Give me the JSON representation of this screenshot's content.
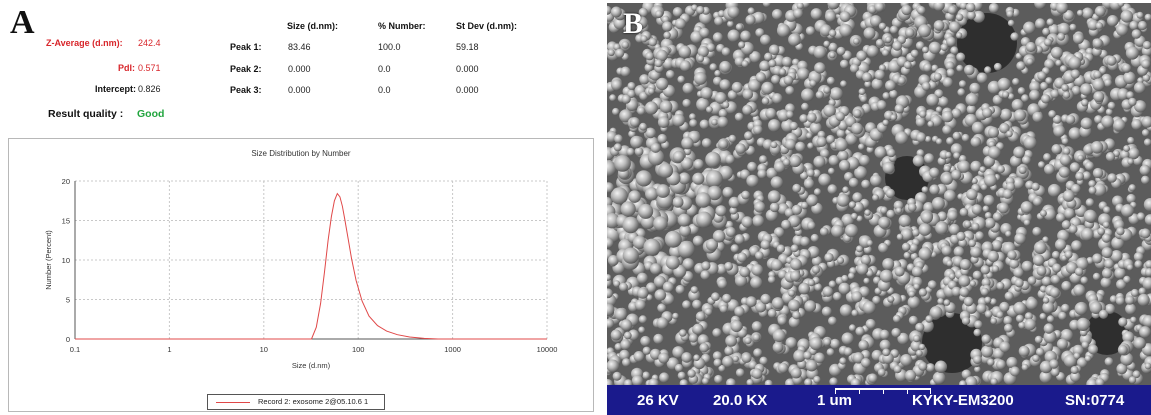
{
  "panel_a": {
    "letter": "A",
    "summary": {
      "z_average_label": "Z-Average (d.nm):",
      "z_average_value": "242.4",
      "pdi_label": "PdI:",
      "pdi_value": "0.571",
      "intercept_label": "Intercept:",
      "intercept_value": "0.826",
      "result_quality_label": "Result quality :",
      "result_quality_value": "Good",
      "column_headers": [
        "Size (d.nm):",
        "% Number:",
        "St Dev (d.nm):"
      ],
      "peaks": [
        {
          "label": "Peak 1:",
          "size": "83.46",
          "number": "100.0",
          "stdev": "59.18"
        },
        {
          "label": "Peak 2:",
          "size": "0.000",
          "number": "0.0",
          "stdev": "0.000"
        },
        {
          "label": "Peak 3:",
          "size": "0.000",
          "number": "0.0",
          "stdev": "0.000"
        }
      ],
      "colors": {
        "red_label": "#d8262b",
        "good": "#21a53e"
      }
    }
  },
  "chart_data": {
    "type": "line",
    "title": "Size Distribution by Number",
    "xlabel": "Size (d.nm)",
    "ylabel": "Number (Percent)",
    "x_scale": "log",
    "xlim": [
      0.1,
      10000
    ],
    "ylim": [
      0,
      20
    ],
    "x_ticks": [
      "0.1",
      "1",
      "10",
      "100",
      "1000",
      "10000"
    ],
    "y_ticks": [
      "0",
      "5",
      "10",
      "15",
      "20"
    ],
    "grid": true,
    "legend_position": "bottom",
    "series": [
      {
        "name": "Record 2: exosome 2@05.10.6 1",
        "color": "#e04848",
        "x": [
          32,
          36,
          40,
          44,
          48,
          52,
          56,
          60,
          64,
          68,
          72,
          78,
          85,
          95,
          110,
          130,
          160,
          200,
          260,
          350,
          500,
          700
        ],
        "y": [
          0,
          1.5,
          4.5,
          8.5,
          12.5,
          15.5,
          17.5,
          18.4,
          18.0,
          16.8,
          15.2,
          12.8,
          10.2,
          7.4,
          4.8,
          2.9,
          1.7,
          1.0,
          0.55,
          0.25,
          0.08,
          0
        ]
      }
    ]
  },
  "panel_b": {
    "letter": "B",
    "sem_info": {
      "voltage": "26 KV",
      "magnification": "20.0 KX",
      "scale": "1 um",
      "instrument": "KYKY-EM3200",
      "serial": "SN:0774",
      "bar_color": "#1a1a8c"
    }
  }
}
